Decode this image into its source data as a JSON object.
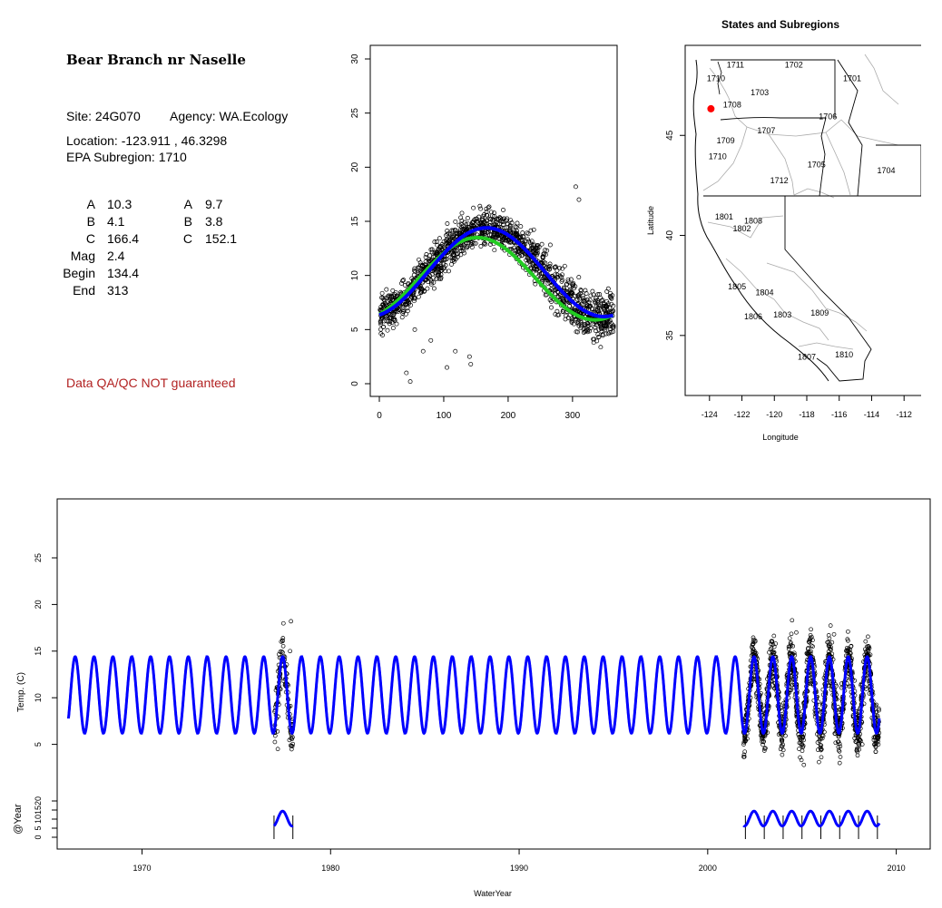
{
  "site": {
    "name": "Bear Branch nr Naselle",
    "site_line": "Site: 24G070",
    "agency_line": "Agency: WA.Ecology",
    "location_line": "Location: -123.911 , 46.3298",
    "subregion_line": "EPA Subregion: 1710",
    "coefficients": {
      "rows": [
        {
          "label": "A",
          "v1": "10.3",
          "label2": "A",
          "v2": "9.7"
        },
        {
          "label": "B",
          "v1": "4.1",
          "label2": "B",
          "v2": "3.8"
        },
        {
          "label": "C",
          "v1": "166.4",
          "label2": "C",
          "v2": "152.1"
        },
        {
          "label": "Mag",
          "v1": "2.4"
        },
        {
          "label": "Begin",
          "v1": "134.4"
        },
        {
          "label": "End",
          "v1": "313"
        }
      ]
    },
    "qa_note": "Data QA/QC NOT guaranteed"
  },
  "chart_data": [
    {
      "type": "scatter",
      "name": "seasonal-fit",
      "xlim": [
        0,
        365
      ],
      "ylim": [
        0,
        30
      ],
      "x_ticks": [
        "0",
        "100",
        "200",
        "300"
      ],
      "y_ticks": [
        "0",
        "5",
        "10",
        "15",
        "20",
        "25",
        "30"
      ],
      "grid": false,
      "series": [
        {
          "kind": "points",
          "color": "#000000"
        },
        {
          "kind": "line",
          "color": "#0000ff",
          "A": 10.3,
          "B": 4.1,
          "C": 166.4
        },
        {
          "kind": "line",
          "color": "#22cc22",
          "A": 9.7,
          "B": 3.8,
          "C": 152.1
        }
      ],
      "outliers": [
        [
          42,
          1.0
        ],
        [
          48,
          0.2
        ],
        [
          55,
          5.0
        ],
        [
          68,
          3.0
        ],
        [
          80,
          4.0
        ],
        [
          105,
          1.5
        ],
        [
          118,
          3.0
        ],
        [
          140,
          2.5
        ],
        [
          142,
          1.8
        ],
        [
          305,
          18.2
        ],
        [
          310,
          17.0
        ]
      ]
    },
    {
      "type": "map",
      "title": "States and Subregions",
      "xlabel": "Longitude",
      "ylabel": "Latitude",
      "xlim": [
        -125.5,
        -110.5
      ],
      "ylim": [
        32,
        49.5
      ],
      "x_ticks": [
        "-124",
        "-122",
        "-120",
        "-118",
        "-116",
        "-114",
        "-112"
      ],
      "y_ticks": [
        "35",
        "40",
        "45"
      ],
      "site_point": {
        "lon": -123.911,
        "lat": 46.3298,
        "color": "#ff0000"
      },
      "region_labels": [
        {
          "text": "1702",
          "lon": -118.8,
          "lat": 48.4
        },
        {
          "text": "1711",
          "lon": -122.4,
          "lat": 48.4
        },
        {
          "text": "1710",
          "lon": -123.6,
          "lat": 47.7
        },
        {
          "text": "1701",
          "lon": -115.2,
          "lat": 47.7
        },
        {
          "text": "1703",
          "lon": -120.9,
          "lat": 47.0
        },
        {
          "text": "1708",
          "lon": -122.6,
          "lat": 46.4
        },
        {
          "text": "1706",
          "lon": -116.7,
          "lat": 45.8
        },
        {
          "text": "1707",
          "lon": -120.5,
          "lat": 45.1
        },
        {
          "text": "1709",
          "lon": -123.0,
          "lat": 44.6
        },
        {
          "text": "1710",
          "lon": -123.5,
          "lat": 43.8
        },
        {
          "text": "1705",
          "lon": -117.4,
          "lat": 43.4
        },
        {
          "text": "1704",
          "lon": -113.1,
          "lat": 43.1
        },
        {
          "text": "1712",
          "lon": -119.7,
          "lat": 42.6
        },
        {
          "text": "1801",
          "lon": -123.1,
          "lat": 40.8
        },
        {
          "text": "1808",
          "lon": -121.3,
          "lat": 40.6
        },
        {
          "text": "1802",
          "lon": -122.0,
          "lat": 40.2
        },
        {
          "text": "1805",
          "lon": -122.3,
          "lat": 37.3
        },
        {
          "text": "1804",
          "lon": -120.6,
          "lat": 37.0
        },
        {
          "text": "1806",
          "lon": -121.3,
          "lat": 35.8
        },
        {
          "text": "1803",
          "lon": -119.5,
          "lat": 35.9
        },
        {
          "text": "1809",
          "lon": -117.2,
          "lat": 36.0
        },
        {
          "text": "1807",
          "lon": -118.0,
          "lat": 33.8
        },
        {
          "text": "1810",
          "lon": -115.7,
          "lat": 33.9
        }
      ]
    },
    {
      "type": "line",
      "name": "time-series",
      "xlabel": "WaterYear",
      "ylabel": "Temp. (C)",
      "ylabel2": "@Year",
      "xlim": [
        1965.5,
        2011.8
      ],
      "ylim": [
        0,
        30
      ],
      "x_ticks": [
        "1970",
        "1980",
        "1990",
        "2000",
        "2010"
      ],
      "y_ticks": [
        "5",
        "10",
        "15",
        "20",
        "25"
      ],
      "y2_ticks": [
        "0",
        "5",
        "10",
        "15",
        "20"
      ],
      "grid": false,
      "model": {
        "A": 10.3,
        "B": 4.1,
        "C": 166.4,
        "start_year": 1966.1,
        "end_year": 2009.1,
        "color": "#0000ff"
      },
      "observed_period_1": [
        1977.0,
        1978.0
      ],
      "observed_period_2": [
        2001.9,
        2009.1
      ],
      "obs_outliers": [
        [
          1977.9,
          18.2
        ],
        [
          1977.85,
          15.0
        ],
        [
          1977.2,
          4.5
        ],
        [
          1977.1,
          10.8
        ],
        [
          2003.6,
          15.8
        ],
        [
          2004.7,
          17.0
        ],
        [
          2005.1,
          2.8
        ],
        [
          2005.9,
          3.1
        ],
        [
          2006.7,
          16.8
        ],
        [
          2007.0,
          3.0
        ],
        [
          2007.6,
          15.5
        ],
        [
          2008.2,
          5.0
        ]
      ],
      "year_markers": [
        1977,
        1978,
        2002,
        2003,
        2004,
        2005,
        2006,
        2007,
        2008,
        2009
      ]
    }
  ]
}
